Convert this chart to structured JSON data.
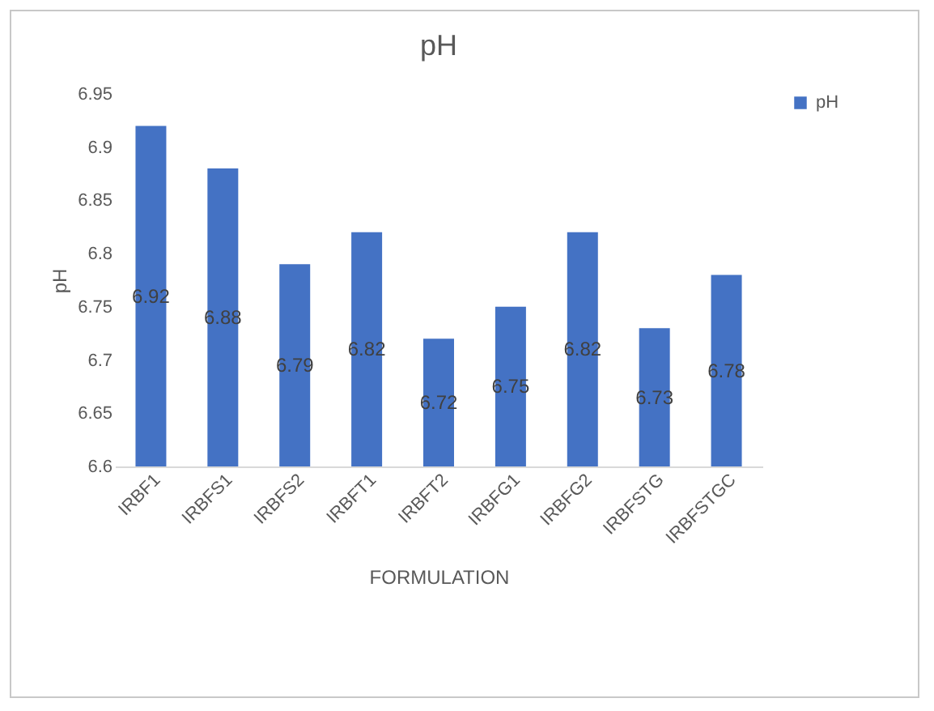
{
  "chart_data": {
    "type": "bar",
    "title": "pH",
    "xlabel": "FORMULATION",
    "ylabel": "pH",
    "categories": [
      "IRBF1",
      "IRBFS1",
      "IRBFS2",
      "IRBFT1",
      "IRBFT2",
      "IRBFG1",
      "IRBFG2",
      "IRBFSTG",
      "IRBFSTGC"
    ],
    "series": [
      {
        "name": "pH",
        "color": "#4472c4",
        "values": [
          6.92,
          6.88,
          6.79,
          6.82,
          6.72,
          6.75,
          6.82,
          6.73,
          6.78
        ]
      }
    ],
    "ylim": [
      6.6,
      6.95
    ],
    "yticks": [
      6.6,
      6.65,
      6.7,
      6.75,
      6.8,
      6.85,
      6.9,
      6.95
    ],
    "data_labels": true,
    "legend": "right",
    "grid": false
  }
}
